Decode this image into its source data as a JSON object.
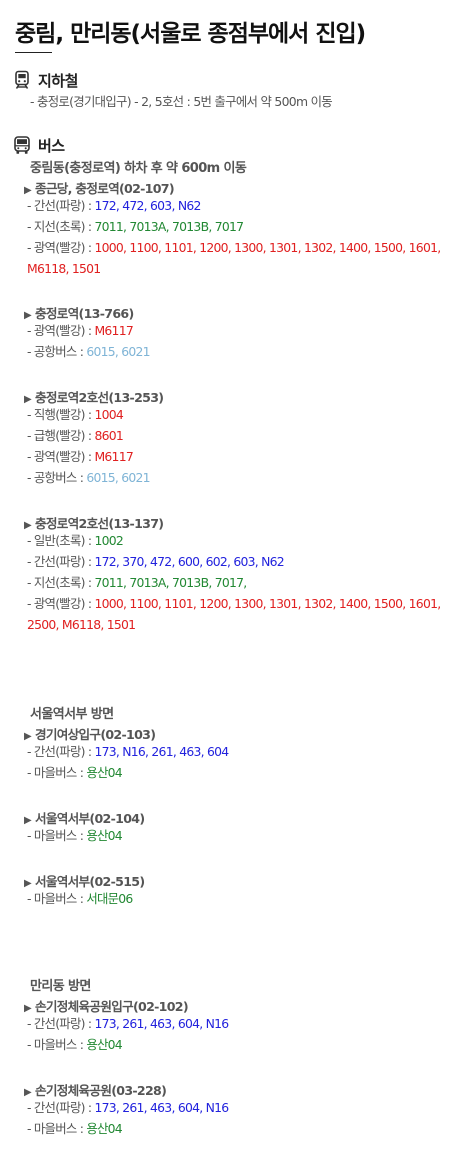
{
  "title": "중림, 만리동(서울로 종점부에서 진입)",
  "subway": {
    "label": "지하철",
    "icon": "train-icon",
    "detail": "- 충정로(경기대입구) - 2, 5호선 : 5번 출구에서 약 500m 이동"
  },
  "bus": {
    "label": "버스",
    "icon": "bus-icon",
    "colors": {
      "blue": "#2222dd",
      "green": "#228833",
      "red": "#e02020",
      "sky": "#7fb4d6"
    },
    "groups": [
      {
        "title": "중림동(충정로역) 하차 후 약 600m 이동",
        "stops": [
          {
            "name": "종근당, 충정로역(02-107)",
            "routes": [
              {
                "label": "- 간선(파랑) : ",
                "color": "blue",
                "value": "172, 472, 603, N62"
              },
              {
                "label": "- 지선(초록) : ",
                "color": "green",
                "value": "7011, 7013A, 7013B, 7017"
              },
              {
                "label": "- 광역(빨강) : ",
                "color": "red",
                "value": "1000, 1100, 1101, 1200, 1300, 1301, 1302, 1400, 1500, 1601, M6118, 1501"
              }
            ]
          },
          {
            "name": "충정로역(13-766)",
            "routes": [
              {
                "label": "- 광역(빨강) : ",
                "color": "red",
                "value": "M6117"
              },
              {
                "label": "- 공항버스 : ",
                "color": "sky",
                "value": "6015, 6021"
              }
            ]
          },
          {
            "name": "충정로역2호선(13-253)",
            "routes": [
              {
                "label": "- 직행(빨강) : ",
                "color": "red",
                "value": "1004"
              },
              {
                "label": "- 급행(빨강) : ",
                "color": "red",
                "value": "8601"
              },
              {
                "label": "- 광역(빨강) : ",
                "color": "red",
                "value": "M6117"
              },
              {
                "label": "- 공항버스 : ",
                "color": "sky",
                "value": "6015, 6021"
              }
            ]
          },
          {
            "name": "충정로역2호선(13-137)",
            "routes": [
              {
                "label": "- 일반(초록) : ",
                "color": "green",
                "value": "1002"
              },
              {
                "label": "- 간선(파랑) : ",
                "color": "blue",
                "value": "172, 370, 472, 600, 602, 603, N62"
              },
              {
                "label": "- 지선(초록) : ",
                "color": "green",
                "value": "7011, 7013A, 7013B, 7017,"
              },
              {
                "label": "- 광역(빨강) : ",
                "color": "red",
                "value": "1000, 1100, 1101, 1200, 1300, 1301, 1302, 1400, 1500, 1601, 2500, M6118, 1501"
              }
            ]
          }
        ]
      },
      {
        "title": "서울역서부 방면",
        "stops": [
          {
            "name": "경기여상입구(02-103)",
            "routes": [
              {
                "label": "- 간선(파랑) : ",
                "color": "blue",
                "value": "173, N16, 261, 463, 604"
              },
              {
                "label": "- 마을버스 : ",
                "color": "green",
                "value": "용산04"
              }
            ]
          },
          {
            "name": "서울역서부(02-104)",
            "routes": [
              {
                "label": "- 마을버스 : ",
                "color": "green",
                "value": "용산04"
              }
            ]
          },
          {
            "name": "서울역서부(02-515)",
            "routes": [
              {
                "label": "- 마을버스 : ",
                "color": "green",
                "value": "서대문06"
              }
            ]
          }
        ]
      },
      {
        "title": "만리동 방면",
        "stops": [
          {
            "name": "손기정체육공원입구(02-102)",
            "routes": [
              {
                "label": "- 간선(파랑) : ",
                "color": "blue",
                "value": "173, 261, 463, 604, N16"
              },
              {
                "label": "- 마을버스 : ",
                "color": "green",
                "value": "용산04"
              }
            ]
          },
          {
            "name": "손기정체육공원(03-228)",
            "routes": [
              {
                "label": "- 간선(파랑) : ",
                "color": "blue",
                "value": "173, 261, 463, 604, N16"
              },
              {
                "label": "- 마을버스 : ",
                "color": "green",
                "value": "용산04"
              }
            ]
          }
        ]
      }
    ]
  }
}
